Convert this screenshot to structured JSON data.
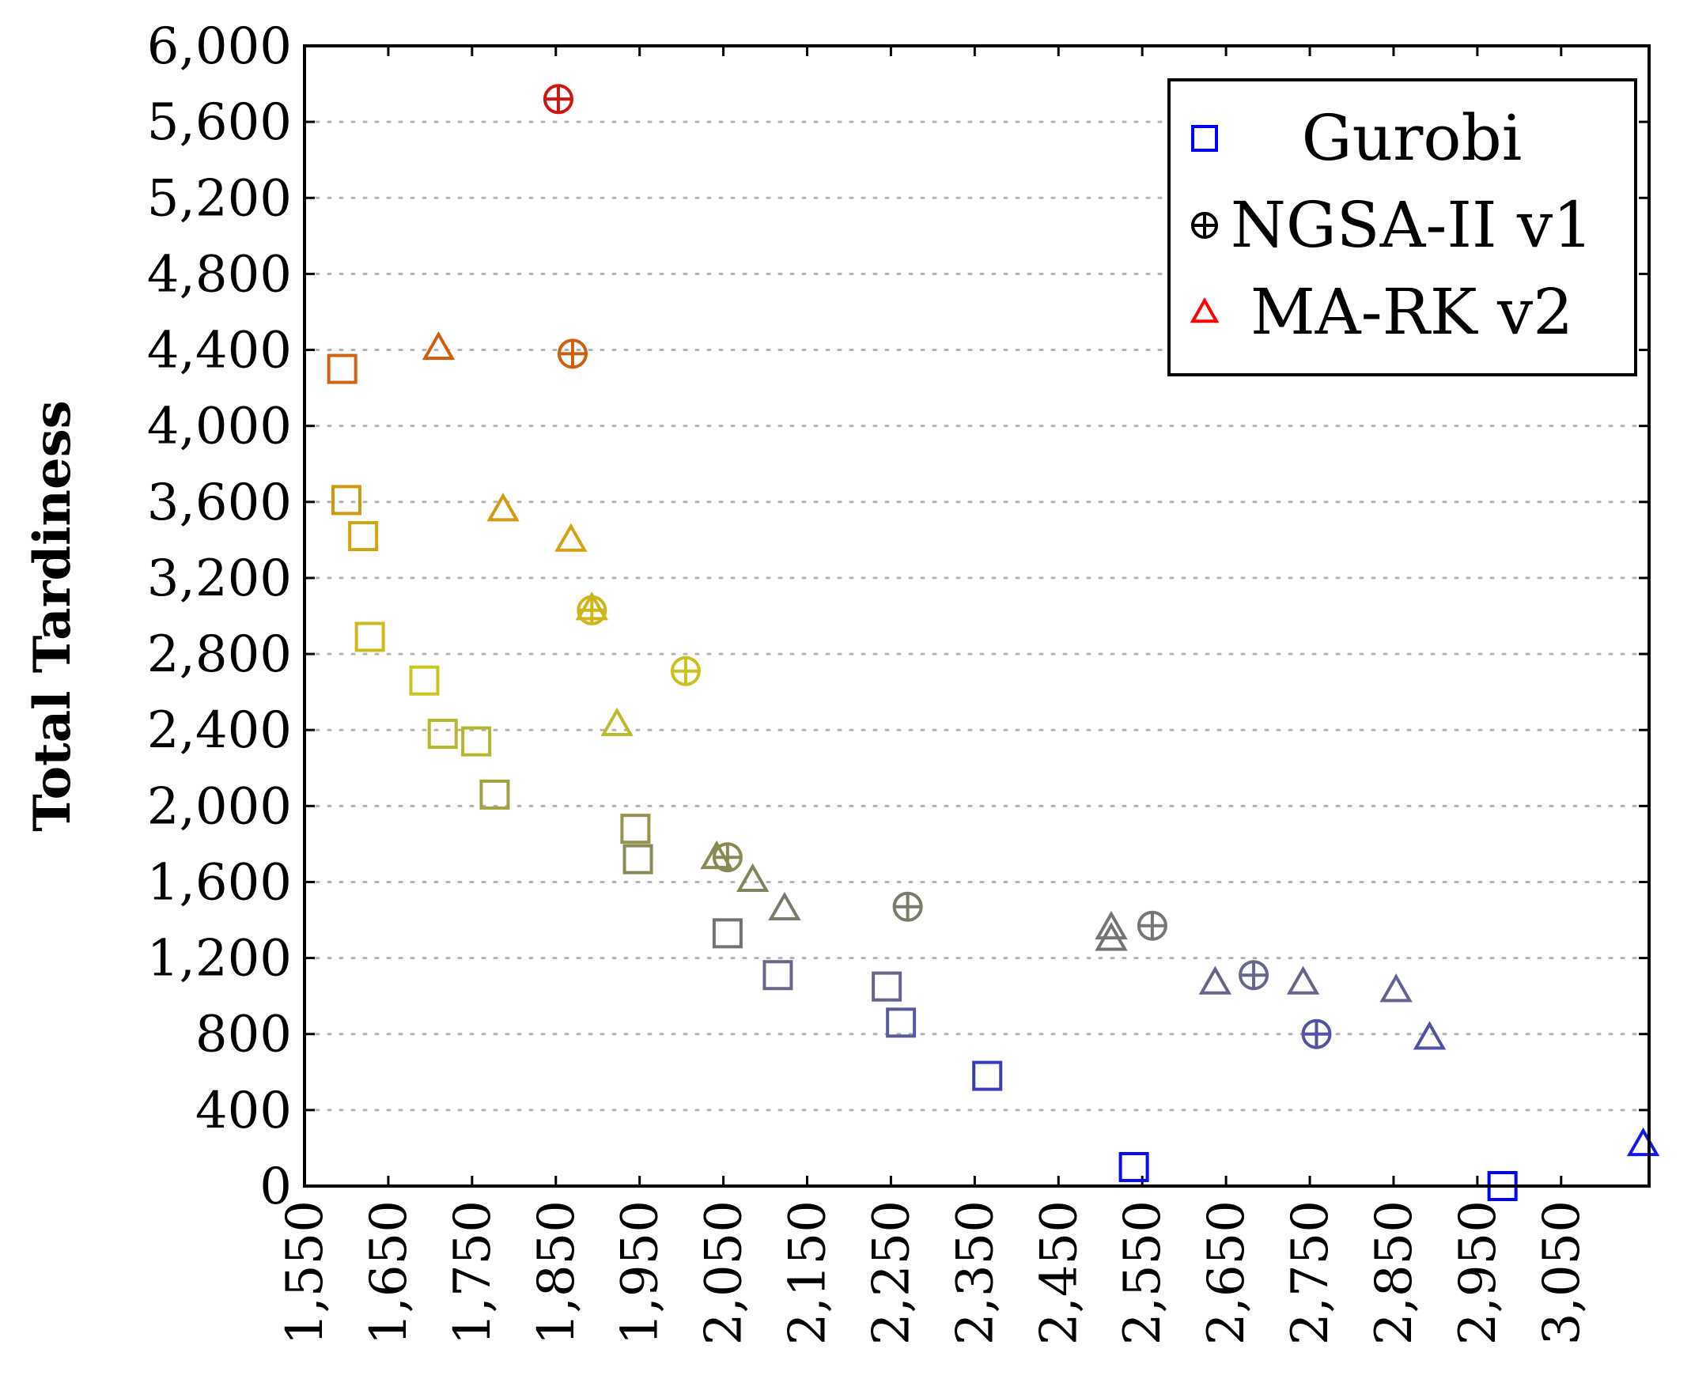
{
  "chart_data": {
    "type": "scatter",
    "title": "",
    "xlabel": "",
    "ylabel": "Total Tardiness",
    "xlim": [
      1550,
      3155
    ],
    "ylim": [
      0,
      6000
    ],
    "x_ticks": [
      1550,
      1650,
      1750,
      1850,
      1950,
      2050,
      2150,
      2250,
      2350,
      2450,
      2550,
      2650,
      2750,
      2850,
      2950,
      3050
    ],
    "x_tick_labels": [
      "1,550",
      "1,650",
      "1,750",
      "1,850",
      "1,950",
      "2,050",
      "2,150",
      "2,250",
      "2,350",
      "2,450",
      "2,550",
      "2,650",
      "2,750",
      "2,850",
      "2,950",
      "3,050"
    ],
    "y_ticks": [
      0,
      400,
      800,
      1200,
      1600,
      2000,
      2400,
      2800,
      3200,
      3600,
      4000,
      4400,
      4800,
      5200,
      5600,
      6000
    ],
    "y_tick_labels": [
      "0",
      "400",
      "800",
      "1,200",
      "1,600",
      "2,000",
      "2,400",
      "2,800",
      "3,200",
      "3,600",
      "4,000",
      "4,400",
      "4,800",
      "5,200",
      "5,600",
      "6,000"
    ],
    "grid": "horizontal-dotted",
    "legend_position": "top-right",
    "color_encoding": "marker colour shifts from red (high tardiness) to blue (low tardiness)",
    "colormap": [
      {
        "t": 0.0,
        "color": "#0000ff"
      },
      {
        "t": 0.15,
        "color": "#5a5a9a"
      },
      {
        "t": 0.3,
        "color": "#8a8a55"
      },
      {
        "t": 0.45,
        "color": "#c8c820"
      },
      {
        "t": 0.6,
        "color": "#d4a010"
      },
      {
        "t": 0.75,
        "color": "#d06010"
      },
      {
        "t": 1.0,
        "color": "#d01010"
      }
    ],
    "series": [
      {
        "name": "Gurobi",
        "marker": "square",
        "legend_color": "#0000ff",
        "points": [
          {
            "x": 1595,
            "y": 4300
          },
          {
            "x": 1600,
            "y": 3610
          },
          {
            "x": 1620,
            "y": 3420
          },
          {
            "x": 1628,
            "y": 2890
          },
          {
            "x": 1693,
            "y": 2660
          },
          {
            "x": 1715,
            "y": 2380
          },
          {
            "x": 1755,
            "y": 2340
          },
          {
            "x": 1777,
            "y": 2060
          },
          {
            "x": 1945,
            "y": 1880
          },
          {
            "x": 1948,
            "y": 1720
          },
          {
            "x": 2055,
            "y": 1330
          },
          {
            "x": 2115,
            "y": 1110
          },
          {
            "x": 2245,
            "y": 1050
          },
          {
            "x": 2262,
            "y": 860
          },
          {
            "x": 2365,
            "y": 580
          },
          {
            "x": 2540,
            "y": 100
          },
          {
            "x": 2980,
            "y": 0
          }
        ]
      },
      {
        "name": "NGSA-II v1",
        "marker": "circle-plus",
        "legend_color": "#000000",
        "points": [
          {
            "x": 1853,
            "y": 5720
          },
          {
            "x": 1870,
            "y": 4380
          },
          {
            "x": 1893,
            "y": 3030
          },
          {
            "x": 2005,
            "y": 2710
          },
          {
            "x": 2055,
            "y": 1730
          },
          {
            "x": 2270,
            "y": 1470
          },
          {
            "x": 2562,
            "y": 1370
          },
          {
            "x": 2683,
            "y": 1110
          },
          {
            "x": 2758,
            "y": 800
          }
        ]
      },
      {
        "name": "MA-RK v2",
        "marker": "triangle",
        "legend_color": "#ff0000",
        "points": [
          {
            "x": 1710,
            "y": 4410
          },
          {
            "x": 1787,
            "y": 3560
          },
          {
            "x": 1868,
            "y": 3400
          },
          {
            "x": 1893,
            "y": 3040
          },
          {
            "x": 1923,
            "y": 2430
          },
          {
            "x": 2042,
            "y": 1730
          },
          {
            "x": 2085,
            "y": 1610
          },
          {
            "x": 2123,
            "y": 1460
          },
          {
            "x": 2513,
            "y": 1360
          },
          {
            "x": 2513,
            "y": 1300
          },
          {
            "x": 2637,
            "y": 1070
          },
          {
            "x": 2742,
            "y": 1070
          },
          {
            "x": 2853,
            "y": 1030
          },
          {
            "x": 2893,
            "y": 780
          },
          {
            "x": 3148,
            "y": 220
          }
        ]
      }
    ]
  }
}
